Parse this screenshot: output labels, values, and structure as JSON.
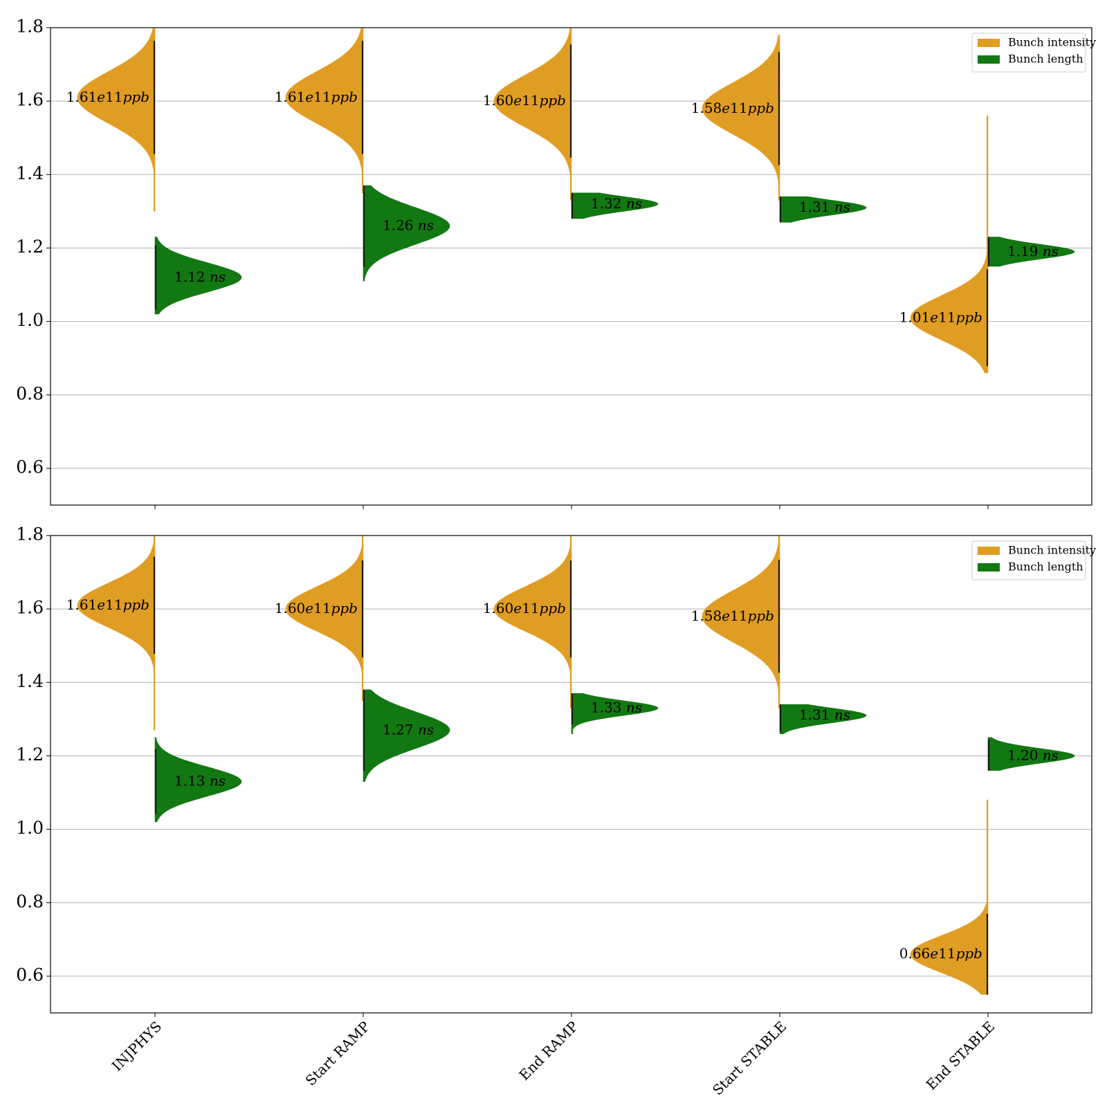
{
  "colors": {
    "intensity": "#e09d24",
    "length": "#127812",
    "grid": "#b0b0b0",
    "axes": "#000000"
  },
  "legend": {
    "placement": "top-right",
    "items": [
      "Bunch intensity",
      "Bunch length"
    ]
  },
  "chart_data": [
    {
      "type": "split-violin",
      "panel": "top",
      "categories": [
        "INJPHYS",
        "Start RAMP",
        "End RAMP",
        "Start STABLE",
        "End STABLE"
      ],
      "ylim": [
        0.5,
        1.8
      ],
      "yticks": [
        0.6,
        0.8,
        1.0,
        1.2,
        1.4,
        1.6,
        1.8
      ],
      "ytick_labels": [
        "0.6",
        "0.8",
        "1.0",
        "1.2",
        "1.4",
        "1.6",
        "1.8"
      ],
      "xlabel": "",
      "ylabel": "",
      "grid": "horizontal",
      "series": [
        {
          "name": "Bunch intensity",
          "side": "left",
          "medians": [
            1.61,
            1.61,
            1.6,
            1.58,
            1.01
          ],
          "spread": [
            0.07,
            0.07,
            0.07,
            0.07,
            0.06
          ],
          "ranges": [
            [
              1.3,
              1.8
            ],
            [
              1.35,
              1.8
            ],
            [
              1.33,
              1.8
            ],
            [
              1.33,
              1.78
            ],
            [
              0.86,
              1.56
            ]
          ],
          "labels": [
            "1.61e11ppb",
            "1.61e11ppb",
            "1.60e11ppb",
            "1.58e11ppb",
            "1.01e11ppb"
          ]
        },
        {
          "name": "Bunch length",
          "side": "right",
          "medians": [
            1.12,
            1.26,
            1.32,
            1.31,
            1.19
          ],
          "spread": [
            0.04,
            0.05,
            0.02,
            0.02,
            0.02
          ],
          "ranges": [
            [
              1.02,
              1.23
            ],
            [
              1.11,
              1.37
            ],
            [
              1.28,
              1.35
            ],
            [
              1.27,
              1.34
            ],
            [
              1.15,
              1.23
            ]
          ],
          "labels": [
            "1.12 ns",
            "1.26 ns",
            "1.32 ns",
            "1.31 ns",
            "1.19 ns"
          ]
        }
      ]
    },
    {
      "type": "split-violin",
      "panel": "bottom",
      "categories": [
        "INJPHYS",
        "Start RAMP",
        "End RAMP",
        "Start STABLE",
        "End STABLE"
      ],
      "ylim": [
        0.5,
        1.8
      ],
      "yticks": [
        0.6,
        0.8,
        1.0,
        1.2,
        1.4,
        1.6,
        1.8
      ],
      "ytick_labels": [
        "0.6",
        "0.8",
        "1.0",
        "1.2",
        "1.4",
        "1.6",
        "1.8"
      ],
      "xlabel": "",
      "ylabel": "",
      "grid": "horizontal",
      "series": [
        {
          "name": "Bunch intensity",
          "side": "left",
          "medians": [
            1.61,
            1.6,
            1.6,
            1.58,
            0.66
          ],
          "spread": [
            0.06,
            0.06,
            0.06,
            0.07,
            0.05
          ],
          "ranges": [
            [
              1.27,
              1.8
            ],
            [
              1.35,
              1.8
            ],
            [
              1.33,
              1.8
            ],
            [
              1.33,
              1.8
            ],
            [
              0.55,
              1.08
            ]
          ],
          "labels": [
            "1.61e11ppb",
            "1.60e11ppb",
            "1.60e11ppb",
            "1.58e11ppb",
            "0.66e11ppb"
          ]
        },
        {
          "name": "Bunch length",
          "side": "right",
          "medians": [
            1.13,
            1.27,
            1.33,
            1.31,
            1.2
          ],
          "spread": [
            0.04,
            0.05,
            0.02,
            0.02,
            0.02
          ],
          "ranges": [
            [
              1.02,
              1.25
            ],
            [
              1.13,
              1.38
            ],
            [
              1.26,
              1.37
            ],
            [
              1.26,
              1.34
            ],
            [
              1.16,
              1.25
            ]
          ],
          "labels": [
            "1.13 ns",
            "1.27 ns",
            "1.33 ns",
            "1.31 ns",
            "1.20 ns"
          ]
        }
      ]
    }
  ]
}
